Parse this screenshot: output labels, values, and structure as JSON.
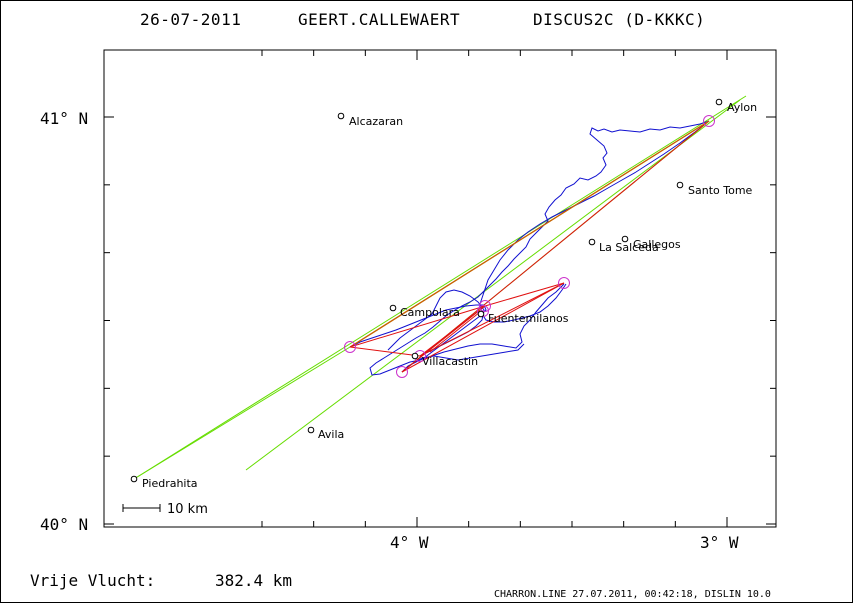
{
  "header": {
    "date": "26-07-2011",
    "pilot": "GEERT.CALLEWAERT",
    "glider": "DISCUS2C (D-KKKC)"
  },
  "axes": {
    "y_labels": [
      "41° N",
      "40° N"
    ],
    "x_labels": [
      "4° W",
      "3° W"
    ]
  },
  "scale_bar": {
    "label": "10 km"
  },
  "towns": [
    {
      "name": "Aylon"
    },
    {
      "name": "Alcazaran"
    },
    {
      "name": "Santo Tome"
    },
    {
      "name": "Gallegos"
    },
    {
      "name": "La Salceda"
    },
    {
      "name": "Campolara"
    },
    {
      "name": "Fuentemilanos"
    },
    {
      "name": "Villacastin"
    },
    {
      "name": "Avila"
    },
    {
      "name": "Piedrahita"
    }
  ],
  "footer": {
    "distance_label": "Vrije Vlucht:",
    "distance_value": "382.4 km",
    "credit": "CHARRON.LINE 27.07.2011, 00:42:18, DISLIN 10.0"
  },
  "colors": {
    "track": "#1010d0",
    "task_red": "#e01010",
    "task_orange": "#c86400",
    "task_green": "#66dd00",
    "turnpoint": "#cc33cc",
    "frame": "#000000"
  }
}
